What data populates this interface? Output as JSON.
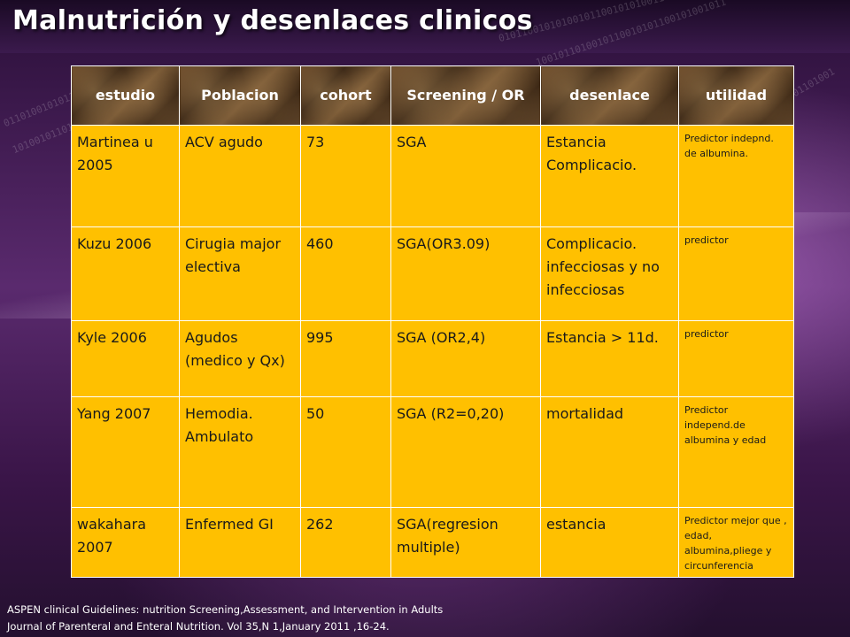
{
  "slide": {
    "title": "Malnutrición y desenlaces clinicos"
  },
  "table": {
    "headers": {
      "estudio": "estudio",
      "poblacion": "Poblacion",
      "cohort": "cohort",
      "screening": "Screening / OR",
      "desenlace": "desenlace",
      "utilidad": "utilidad"
    },
    "rows": [
      {
        "estudio": "Martinea u 2005",
        "poblacion": "ACV agudo",
        "cohort": "73",
        "screening": "SGA",
        "desenlace": "Estancia Complicacio.",
        "utilidad": "Predictor indepnd. de albumina."
      },
      {
        "estudio": "Kuzu 2006",
        "poblacion": "Cirugia major electiva",
        "cohort": "460",
        "screening": "SGA(OR3.09)",
        "desenlace": "Complicacio. infecciosas y no infecciosas",
        "utilidad": "predictor"
      },
      {
        "estudio": "Kyle 2006",
        "poblacion": "Agudos (medico y Qx)",
        "cohort": "995",
        "screening": "SGA (OR2,4)",
        "desenlace": "Estancia > 11d.",
        "utilidad": "predictor"
      },
      {
        "estudio": "Yang 2007",
        "poblacion": "Hemodia. Ambulato",
        "cohort": "50",
        "screening": "SGA (R2=0,20)",
        "desenlace": "mortalidad",
        "utilidad": "Predictor independ.de albumina y edad"
      },
      {
        "estudio": "wakahara 2007",
        "poblacion": "Enfermed GI",
        "cohort": "262",
        "screening": "SGA(regresion multiple)",
        "desenlace": "estancia",
        "utilidad": "Predictor mejor que , edad, albumina,pliege y circunferencia"
      }
    ]
  },
  "citation": {
    "line1": "ASPEN clinical Guidelines: nutrition Screening,Assessment, and Intervention in Adults",
    "line2": "Journal of Parenteral and Enteral Nutrition. Vol 35,N 1,January 2011 ,16-24."
  }
}
